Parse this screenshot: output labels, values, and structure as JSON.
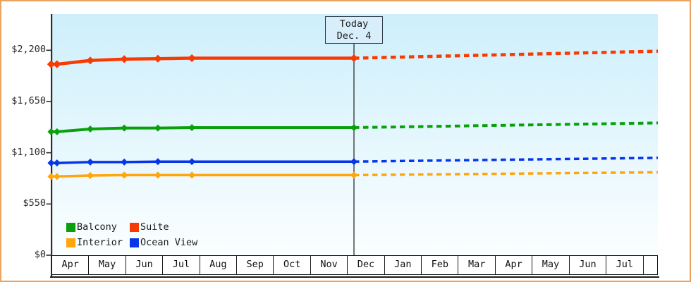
{
  "frame": {
    "border_color": "#eba45f",
    "plot_gradient_top": "#cdeffb",
    "plot_gradient_bottom": "#fbfeff",
    "axis_color": "#2d2d2d",
    "today_line_color": "#3c3c3c"
  },
  "chart_data": {
    "type": "line",
    "title": "",
    "today": {
      "label_line1": "Today",
      "label_line2": "Dec. 4",
      "month_position": 8.165
    },
    "y_axis": {
      "tick_labels": [
        "$2,200",
        "$1,650",
        "$1,100",
        "$550",
        "$0"
      ],
      "tick_values": [
        2200,
        1650,
        1100,
        550,
        0
      ],
      "min": 0,
      "max_visible": 2590,
      "grid": false
    },
    "x_axis": {
      "month_labels": [
        "Apr",
        "May",
        "Jun",
        "Jul",
        "Aug",
        "Sep",
        "Oct",
        "Nov",
        "Dec",
        "Jan",
        "Feb",
        "Mar",
        "Apr",
        "May",
        "Jun",
        "Jul"
      ],
      "visible_month_span": 16.39
    },
    "forecast_style": "dashed",
    "series": [
      {
        "name": "Suite",
        "color": "#f83b02",
        "line_width": 4.5,
        "marker": "diamond",
        "points": [
          [
            -0.03,
            2050
          ],
          [
            0.13,
            2050
          ],
          [
            1.03,
            2090
          ],
          [
            1.95,
            2105
          ],
          [
            2.86,
            2110
          ],
          [
            3.78,
            2115
          ],
          [
            8.165,
            2115
          ]
        ],
        "forecast_end": [
          16.39,
          2190
        ]
      },
      {
        "name": "Balcony",
        "color": "#0aa00a",
        "line_width": 4,
        "marker": "diamond",
        "points": [
          [
            -0.03,
            1325
          ],
          [
            0.13,
            1325
          ],
          [
            1.03,
            1355
          ],
          [
            1.95,
            1365
          ],
          [
            2.86,
            1365
          ],
          [
            3.78,
            1370
          ],
          [
            8.165,
            1370
          ]
        ],
        "forecast_end": [
          16.39,
          1420
        ]
      },
      {
        "name": "Ocean View",
        "color": "#0636e8",
        "line_width": 3.5,
        "marker": "diamond",
        "points": [
          [
            -0.03,
            990
          ],
          [
            0.13,
            990
          ],
          [
            1.03,
            1000
          ],
          [
            1.95,
            1000
          ],
          [
            2.86,
            1005
          ],
          [
            3.78,
            1005
          ],
          [
            8.165,
            1005
          ]
        ],
        "forecast_end": [
          16.39,
          1045
        ]
      },
      {
        "name": "Interior",
        "color": "#ffa60d",
        "line_width": 3.5,
        "marker": "diamond",
        "points": [
          [
            -0.03,
            845
          ],
          [
            0.13,
            845
          ],
          [
            1.03,
            855
          ],
          [
            1.95,
            860
          ],
          [
            2.86,
            860
          ],
          [
            3.78,
            860
          ],
          [
            8.165,
            860
          ]
        ],
        "forecast_end": [
          16.39,
          890
        ]
      }
    ],
    "legend": {
      "position": "bottom-left-inside",
      "rows": [
        [
          "Balcony",
          "Suite"
        ],
        [
          "Interior",
          "Ocean View"
        ]
      ]
    }
  }
}
